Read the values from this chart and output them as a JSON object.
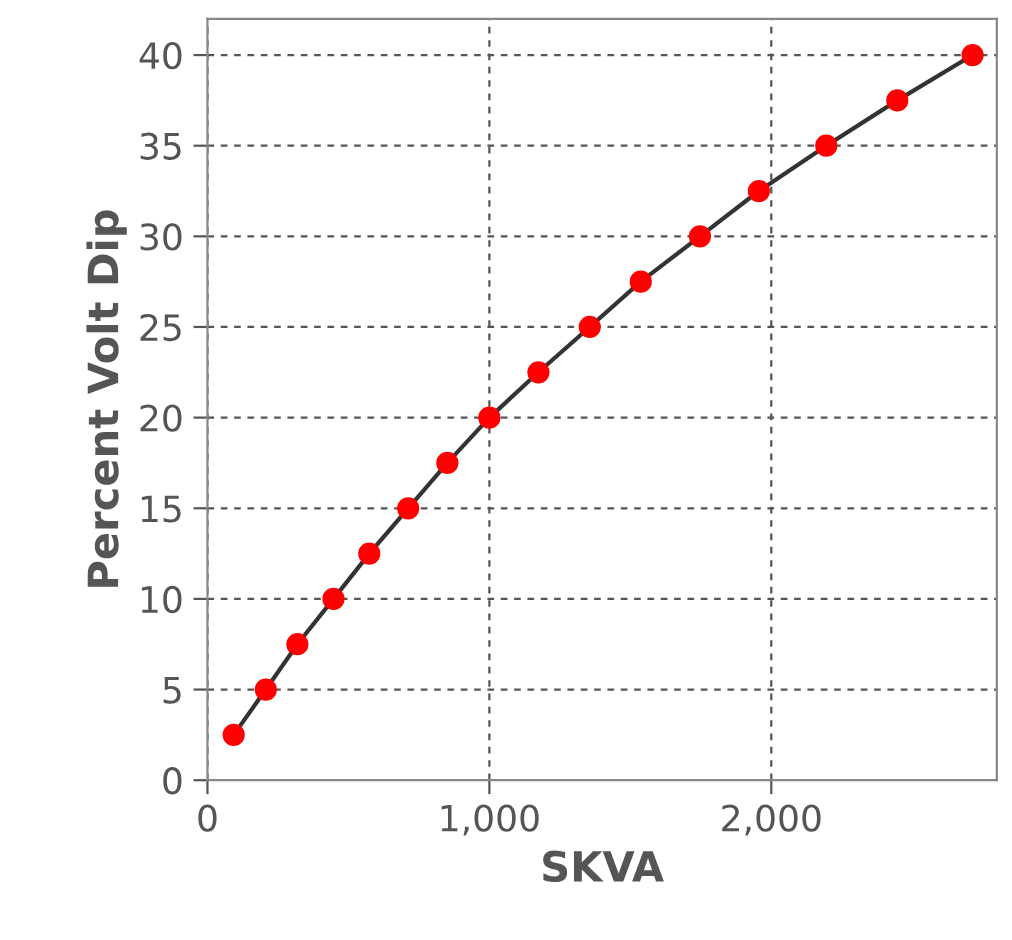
{
  "chart_data": {
    "type": "line",
    "xlabel": "SKVA",
    "ylabel": "Percent Volt Dip",
    "x": [
      93,
      207,
      319,
      447,
      574,
      712,
      851,
      1000,
      1174,
      1356,
      1537,
      1747,
      1956,
      2195,
      2447,
      2714
    ],
    "series": [
      {
        "color": "#ff0000",
        "values": [
          2.5,
          5,
          7.5,
          10,
          12.5,
          15,
          17.5,
          20,
          22.5,
          25,
          27.5,
          30,
          32.5,
          35,
          37.5,
          40
        ]
      }
    ],
    "marker": "circle",
    "line_style": "solid",
    "grid": true,
    "xlim": [
      0,
      2800
    ],
    "xticks": [
      {
        "value": 0,
        "label": "0"
      },
      {
        "value": 1000,
        "label": "1,000"
      },
      {
        "value": 2000,
        "label": "2,000"
      }
    ],
    "ylim": [
      0,
      42
    ],
    "yticks": [
      0,
      5,
      10,
      15,
      20,
      25,
      30,
      35,
      40
    ]
  }
}
